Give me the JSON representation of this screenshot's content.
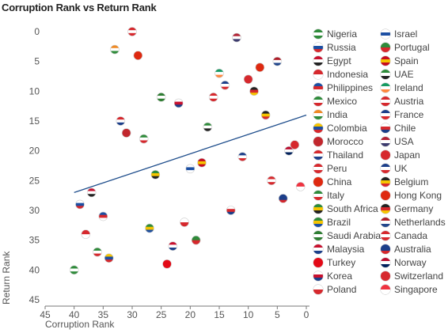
{
  "chart_data": {
    "type": "scatter",
    "title": "Corruption Rank vs Return Rank",
    "xlabel": "Corruption Rank",
    "ylabel": "Return Rank",
    "xlim": [
      45,
      0
    ],
    "ylim": [
      45,
      0
    ],
    "x_ticks": [
      45,
      40,
      35,
      30,
      25,
      20,
      15,
      10,
      5,
      0
    ],
    "y_ticks": [
      0,
      5,
      10,
      15,
      20,
      25,
      30,
      35,
      40,
      45
    ],
    "x_inverted": true,
    "y_inverted": true,
    "trendline": {
      "x": [
        40,
        0
      ],
      "y": [
        27,
        14
      ]
    },
    "points": [
      {
        "country": "Nigeria",
        "x": 40,
        "y": 40,
        "colors": [
          "#2e8b3a",
          "#ffffff",
          "#2e8b3a"
        ]
      },
      {
        "country": "Russia",
        "x": 39,
        "y": 29,
        "colors": [
          "#ffffff",
          "#1c4fa3",
          "#d6282d"
        ]
      },
      {
        "country": "Egypt",
        "x": 37,
        "y": 27,
        "colors": [
          "#c8102e",
          "#ffffff",
          "#222222"
        ]
      },
      {
        "country": "Indonesia",
        "x": 38,
        "y": 34,
        "colors": [
          "#d6282d",
          "#ffffff"
        ]
      },
      {
        "country": "Philippines",
        "x": 35,
        "y": 31,
        "colors": [
          "#1c4fa3",
          "#d6282d",
          "#ffffff"
        ]
      },
      {
        "country": "Mexico",
        "x": 36,
        "y": 37,
        "colors": [
          "#2e8b3a",
          "#ffffff",
          "#d6282d"
        ]
      },
      {
        "country": "India",
        "x": 33,
        "y": 3,
        "colors": [
          "#f08a24",
          "#ffffff",
          "#2e8b3a"
        ]
      },
      {
        "country": "Colombia",
        "x": 34,
        "y": 38,
        "colors": [
          "#f5c400",
          "#1c4fa3",
          "#d6282d"
        ]
      },
      {
        "country": "Morocco",
        "x": 31,
        "y": 17,
        "colors": [
          "#c1272d",
          "#c1272d"
        ]
      },
      {
        "country": "Thailand",
        "x": 32,
        "y": 15,
        "colors": [
          "#d6282d",
          "#ffffff",
          "#1c3f8a"
        ]
      },
      {
        "country": "Peru",
        "x": 30,
        "y": 0,
        "colors": [
          "#d6282d",
          "#ffffff",
          "#d6282d"
        ]
      },
      {
        "country": "China",
        "x": 29,
        "y": 4,
        "colors": [
          "#de2910",
          "#de2910"
        ]
      },
      {
        "country": "Italy",
        "x": 28,
        "y": 18,
        "colors": [
          "#2e8b3a",
          "#ffffff",
          "#d6282d"
        ]
      },
      {
        "country": "South Africa",
        "x": 26,
        "y": 24,
        "colors": [
          "#2e8b3a",
          "#f5c400",
          "#222222"
        ]
      },
      {
        "country": "Brazil",
        "x": 27,
        "y": 33,
        "colors": [
          "#2e8b3a",
          "#f5c400",
          "#1c4fa3"
        ]
      },
      {
        "country": "Saudi Arabia",
        "x": 25,
        "y": 11,
        "colors": [
          "#2e7d32",
          "#ffffff",
          "#2e7d32"
        ]
      },
      {
        "country": "Malaysia",
        "x": 23,
        "y": 36,
        "colors": [
          "#c8102e",
          "#ffffff",
          "#1c3f8a"
        ]
      },
      {
        "country": "Turkey",
        "x": 24,
        "y": 39,
        "colors": [
          "#e30a17",
          "#e30a17"
        ]
      },
      {
        "country": "Korea",
        "x": 22,
        "y": 12,
        "colors": [
          "#ffffff",
          "#c8102e",
          "#1c3f8a"
        ]
      },
      {
        "country": "Poland",
        "x": 21,
        "y": 32,
        "colors": [
          "#ffffff",
          "#d6282d"
        ]
      },
      {
        "country": "Israel",
        "x": 20,
        "y": 23,
        "colors": [
          "#ffffff",
          "#1c4fa3",
          "#ffffff"
        ]
      },
      {
        "country": "Portugal",
        "x": 19,
        "y": 35,
        "colors": [
          "#2e8b3a",
          "#d6282d"
        ]
      },
      {
        "country": "Spain",
        "x": 18,
        "y": 22,
        "colors": [
          "#c60b1e",
          "#f5c400",
          "#c60b1e"
        ]
      },
      {
        "country": "UAE",
        "x": 17,
        "y": 16,
        "colors": [
          "#2e8b3a",
          "#ffffff",
          "#222222"
        ]
      },
      {
        "country": "Ireland",
        "x": 15,
        "y": 7,
        "colors": [
          "#169b62",
          "#ffffff",
          "#ff883e"
        ]
      },
      {
        "country": "Austria",
        "x": 16,
        "y": 11,
        "colors": [
          "#d6282d",
          "#ffffff",
          "#d6282d"
        ]
      },
      {
        "country": "France",
        "x": 14,
        "y": 9,
        "colors": [
          "#1c3f8a",
          "#ffffff",
          "#d6282d"
        ]
      },
      {
        "country": "Chile",
        "x": 13,
        "y": 30,
        "colors": [
          "#ffffff",
          "#d6282d",
          "#1c3f8a"
        ]
      },
      {
        "country": "USA",
        "x": 12,
        "y": 1,
        "colors": [
          "#b22234",
          "#ffffff",
          "#3c3b6e"
        ]
      },
      {
        "country": "Japan",
        "x": 10,
        "y": 8,
        "colors": [
          "#d6282d",
          "#d6282d"
        ]
      },
      {
        "country": "UK",
        "x": 11,
        "y": 21,
        "colors": [
          "#1c3f8a",
          "#ffffff",
          "#d6282d"
        ]
      },
      {
        "country": "Belgium",
        "x": 7,
        "y": 14,
        "colors": [
          "#222222",
          "#f5c400",
          "#d6282d"
        ]
      },
      {
        "country": "Hong Kong",
        "x": 8,
        "y": 6,
        "colors": [
          "#de2910",
          "#de2910"
        ]
      },
      {
        "country": "Germany",
        "x": 9,
        "y": 10,
        "colors": [
          "#222222",
          "#d6282d",
          "#f5c400"
        ]
      },
      {
        "country": "Netherlands",
        "x": 5,
        "y": 5,
        "colors": [
          "#ae1c28",
          "#ffffff",
          "#21468b"
        ]
      },
      {
        "country": "Canada",
        "x": 6,
        "y": 25,
        "colors": [
          "#d6282d",
          "#ffffff",
          "#d6282d"
        ]
      },
      {
        "country": "Australia",
        "x": 4,
        "y": 28,
        "colors": [
          "#1c3f8a",
          "#1c3f8a",
          "#d6282d"
        ]
      },
      {
        "country": "Norway",
        "x": 3,
        "y": 20,
        "colors": [
          "#ba0c2f",
          "#ffffff",
          "#00205b"
        ]
      },
      {
        "country": "Switzerland",
        "x": 2,
        "y": 19,
        "colors": [
          "#d6282d",
          "#d6282d"
        ]
      },
      {
        "country": "Singapore",
        "x": 1,
        "y": 26,
        "colors": [
          "#ef3340",
          "#ffffff"
        ]
      }
    ]
  }
}
